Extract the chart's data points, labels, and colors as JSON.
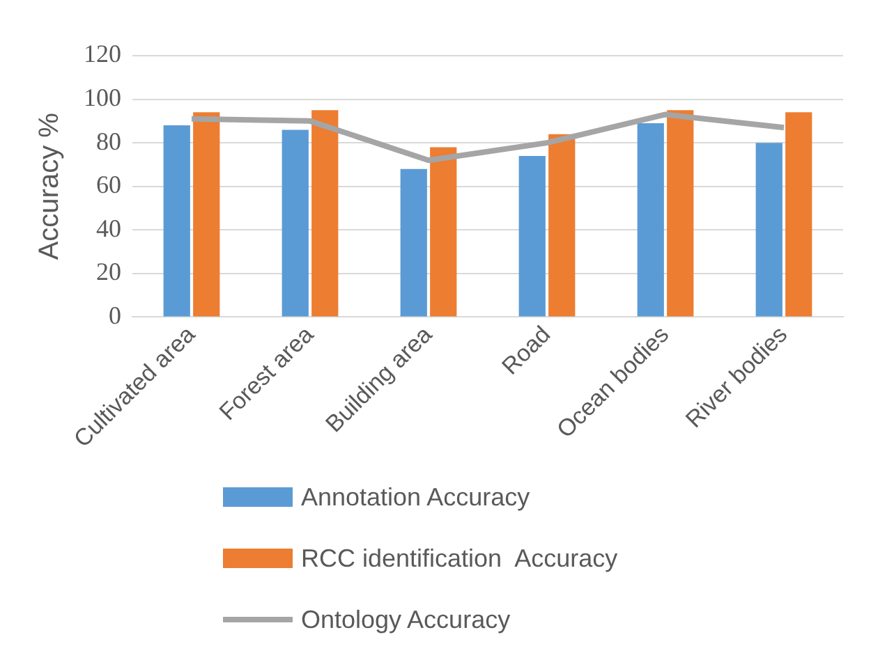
{
  "chart_data": {
    "type": "bar",
    "ylabel": "Accuracy %",
    "categories": [
      "Cultivated area",
      "Forest area",
      "Building area",
      "Road",
      "Ocean bodies",
      "River bodies"
    ],
    "series": [
      {
        "name": "Annotation Accuracy",
        "color": "#5b9bd5",
        "values": [
          88,
          86,
          68,
          74,
          89,
          80
        ]
      },
      {
        "name": "RCC identification  Accuracy",
        "color": "#ed7d31",
        "values": [
          94,
          95,
          78,
          84,
          95,
          94
        ]
      },
      {
        "name": "Ontology Accuracy",
        "type": "line",
        "color": "#a5a5a5",
        "values": [
          91,
          90,
          72,
          80,
          93,
          87
        ]
      }
    ],
    "ylim": [
      0,
      120
    ],
    "yticks": [
      0,
      20,
      40,
      60,
      80,
      100,
      120
    ],
    "grid": "y",
    "legend": "bottom",
    "marker": "none"
  }
}
